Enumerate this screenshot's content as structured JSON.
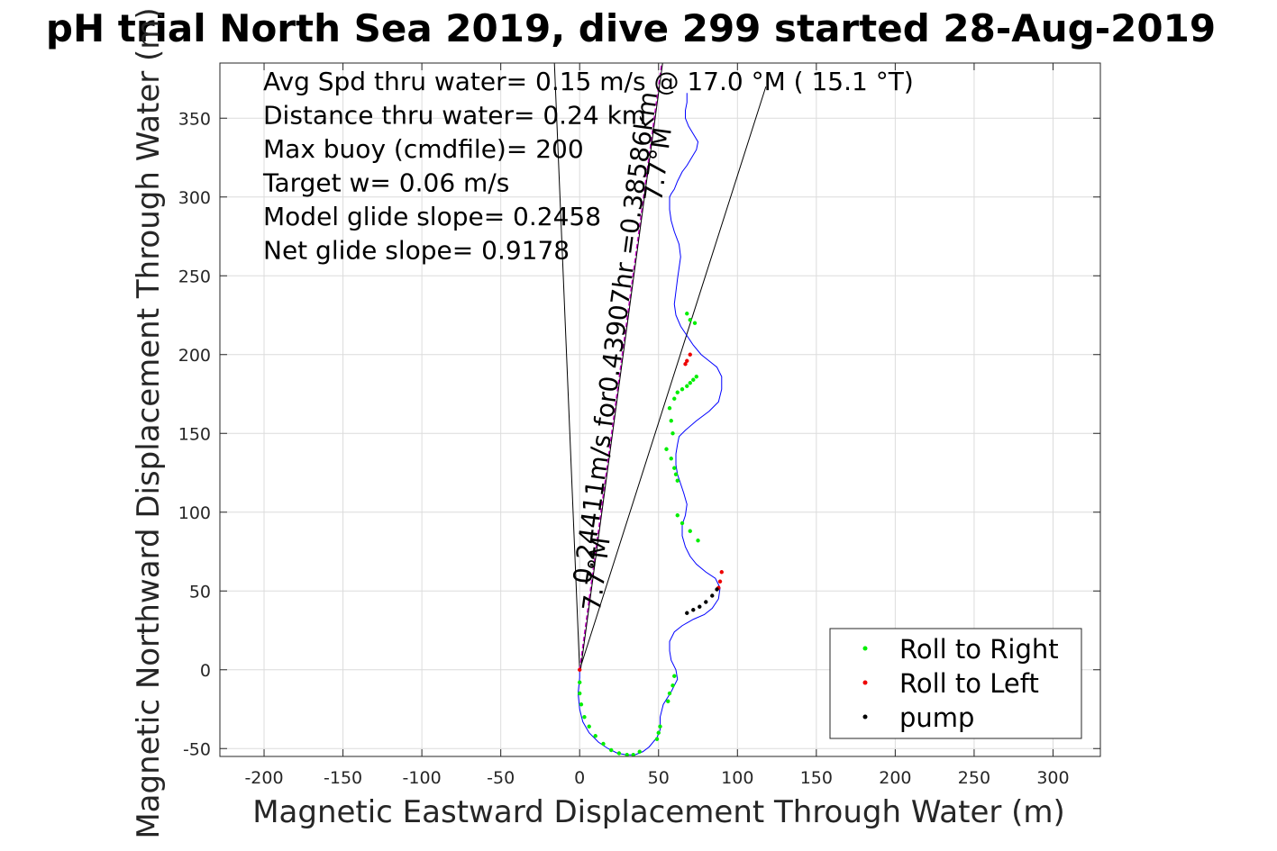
{
  "chart_data": {
    "type": "scatter",
    "title": "pH trial North Sea 2019, dive 299 started 28-Aug-2019",
    "xlabel": "Magnetic Eastward Displacement Through Water (m)",
    "ylabel": "Magnetic Northward Displacement Through Water (m)",
    "xlim": [
      -228,
      330
    ],
    "ylim": [
      -55,
      385
    ],
    "xticks": [
      -200,
      -150,
      -100,
      -50,
      0,
      50,
      100,
      150,
      200,
      250,
      300
    ],
    "yticks": [
      -50,
      0,
      50,
      100,
      150,
      200,
      250,
      300,
      350
    ],
    "grid": true,
    "annotations": [
      "Avg Spd thru water=  0.15 m/s @  17.0 °M ( 15.1 °T)",
      "Distance thru water=  0.24 km",
      "Max buoy (cmdfile)= 200",
      "Target w= 0.06 m/s",
      "Model glide slope= 0.2458",
      "Net glide slope= 0.9178"
    ],
    "rotated_labels": [
      {
        "text": "0.24411m/s for0.43907hr =0.38586km",
        "x": 28,
        "y": 210
      },
      {
        "text": "7.7°M",
        "x": 16,
        "y": 60
      },
      {
        "text": "7.7°M",
        "x": 55,
        "y": 320
      }
    ],
    "guide_lines": [
      {
        "x": [
          -16,
          0,
          118
        ],
        "y": [
          385,
          0,
          370
        ]
      }
    ],
    "heading_line": {
      "x": [
        0,
        52
      ],
      "y": [
        0,
        385
      ]
    },
    "track": {
      "x": [
        0,
        0,
        -1,
        0,
        2,
        6,
        12,
        18,
        24,
        30,
        35,
        40,
        44,
        49,
        51,
        51,
        53,
        58,
        62,
        61,
        58,
        57,
        57,
        60,
        65,
        72,
        79,
        84,
        88,
        89,
        86,
        80,
        74,
        70,
        67,
        65,
        65,
        67,
        68,
        66,
        64,
        62,
        61,
        61,
        62,
        63,
        67,
        74,
        82,
        88,
        90,
        90,
        87,
        82,
        77,
        72,
        68,
        64,
        61,
        60,
        61,
        62,
        63,
        64,
        63,
        60,
        58,
        57,
        57,
        57,
        58,
        60,
        62,
        65,
        68,
        71,
        74,
        75,
        72,
        69,
        67,
        67,
        68,
        68
      ],
      "y": [
        0,
        -5,
        -15,
        -25,
        -33,
        -40,
        -46,
        -50,
        -53,
        -54,
        -54,
        -52,
        -49,
        -43,
        -38,
        -30,
        -22,
        -14,
        -6,
        0,
        6,
        12,
        18,
        24,
        28,
        32,
        35,
        39,
        45,
        52,
        58,
        62,
        67,
        72,
        78,
        85,
        92,
        98,
        105,
        112,
        118,
        124,
        130,
        137,
        143,
        148,
        152,
        158,
        164,
        170,
        178,
        186,
        192,
        196,
        200,
        206,
        212,
        218,
        225,
        232,
        240,
        248,
        255,
        262,
        270,
        278,
        285,
        292,
        298,
        300,
        302,
        305,
        310,
        316,
        320,
        325,
        330,
        335,
        340,
        345,
        350,
        355,
        360,
        366
      ]
    },
    "series": [
      {
        "name": "Roll to Right",
        "color": "#00ee00",
        "x": [
          0,
          0,
          1,
          3,
          6,
          10,
          15,
          20,
          25,
          30,
          34,
          38,
          49,
          50,
          51,
          60,
          59,
          57,
          56,
          62,
          65,
          70,
          75,
          55,
          58,
          60,
          61,
          62,
          59,
          58,
          57,
          60,
          62,
          65,
          68,
          70,
          72,
          74,
          73,
          70,
          68
        ],
        "y": [
          -8,
          -15,
          -22,
          -30,
          -36,
          -42,
          -47,
          -51,
          -53,
          -54,
          -54,
          -52,
          -44,
          -40,
          -36,
          -4,
          -10,
          -15,
          -20,
          98,
          93,
          88,
          82,
          140,
          134,
          128,
          124,
          120,
          150,
          158,
          166,
          172,
          176,
          178,
          180,
          182,
          184,
          186,
          220,
          222,
          226
        ]
      },
      {
        "name": "Roll to Left",
        "color": "#ee0000",
        "x": [
          0,
          89,
          90,
          88,
          70,
          68,
          67
        ],
        "y": [
          0,
          56,
          62,
          52,
          200,
          196,
          194
        ]
      },
      {
        "name": "pump",
        "color": "#000000",
        "x": [
          68,
          72,
          76,
          80,
          84,
          87
        ],
        "y": [
          36,
          38,
          40,
          43,
          47,
          51
        ]
      }
    ],
    "legend_position": "bottom-right"
  }
}
